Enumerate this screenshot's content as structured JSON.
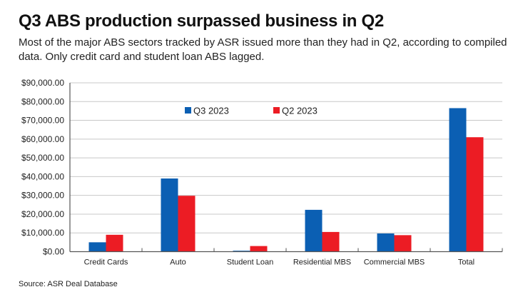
{
  "header": {
    "title": "Q3 ABS production surpassed business in Q2",
    "subtitle": "Most of the major ABS sectors tracked by ASR issued more than they had in Q2, according to compiled data. Only credit card and student loan ABS lagged."
  },
  "footer": {
    "source": "Source: ASR Deal Database"
  },
  "chart_data": {
    "type": "bar",
    "title": "Q3 ABS production surpassed business in Q2",
    "xlabel": "",
    "ylabel": "",
    "categories": [
      "Credit Cards",
      "Auto",
      "Student Loan",
      "Residential MBS",
      "Commercial MBS",
      "Total"
    ],
    "series": [
      {
        "name": "Q3 2023",
        "color": "#0b5fb3",
        "values": [
          5000,
          39000,
          500,
          22300,
          9700,
          76500
        ]
      },
      {
        "name": "Q2 2023",
        "color": "#ec1c24",
        "values": [
          9000,
          29800,
          3000,
          10500,
          8800,
          61000
        ]
      }
    ],
    "ylim": [
      0,
      90000
    ],
    "yticks": [
      0,
      10000,
      20000,
      30000,
      40000,
      50000,
      60000,
      70000,
      80000,
      90000
    ],
    "ytick_labels": [
      "$0.00",
      "$10,000.00",
      "$20,000.00",
      "$30,000.00",
      "$40,000.00",
      "$50,000.00",
      "$60,000.00",
      "$70,000.00",
      "$80,000.00",
      "$90,000.00"
    ],
    "grid": true,
    "legend_position": "top-center"
  }
}
